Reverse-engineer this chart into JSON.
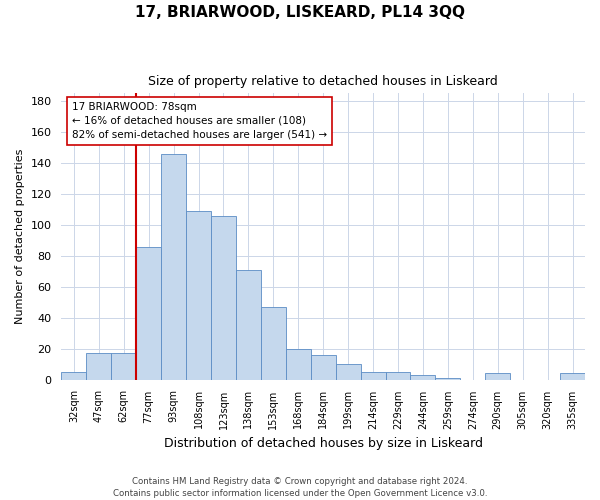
{
  "title": "17, BRIARWOOD, LISKEARD, PL14 3QQ",
  "subtitle": "Size of property relative to detached houses in Liskeard",
  "xlabel": "Distribution of detached houses by size in Liskeard",
  "ylabel": "Number of detached properties",
  "categories": [
    "32sqm",
    "47sqm",
    "62sqm",
    "77sqm",
    "93sqm",
    "108sqm",
    "123sqm",
    "138sqm",
    "153sqm",
    "168sqm",
    "184sqm",
    "199sqm",
    "214sqm",
    "229sqm",
    "244sqm",
    "259sqm",
    "274sqm",
    "290sqm",
    "305sqm",
    "320sqm",
    "335sqm"
  ],
  "bar_heights": [
    5,
    17,
    17,
    86,
    146,
    109,
    106,
    71,
    47,
    20,
    16,
    10,
    5,
    5,
    3,
    1,
    0,
    4,
    0,
    0,
    4
  ],
  "bar_color": "#c5d8ed",
  "bar_edge_color": "#5b8cc5",
  "vline_color": "#cc0000",
  "vline_index": 3.0,
  "annotation_text": "17 BRIARWOOD: 78sqm\n← 16% of detached houses are smaller (108)\n82% of semi-detached houses are larger (541) →",
  "annotation_box_color": "#ffffff",
  "annotation_box_edge": "#cc0000",
  "ylim": [
    0,
    185
  ],
  "yticks": [
    0,
    20,
    40,
    60,
    80,
    100,
    120,
    140,
    160,
    180
  ],
  "footer_text": "Contains HM Land Registry data © Crown copyright and database right 2024.\nContains public sector information licensed under the Open Government Licence v3.0.",
  "background_color": "#ffffff",
  "grid_color": "#ccd6e8"
}
